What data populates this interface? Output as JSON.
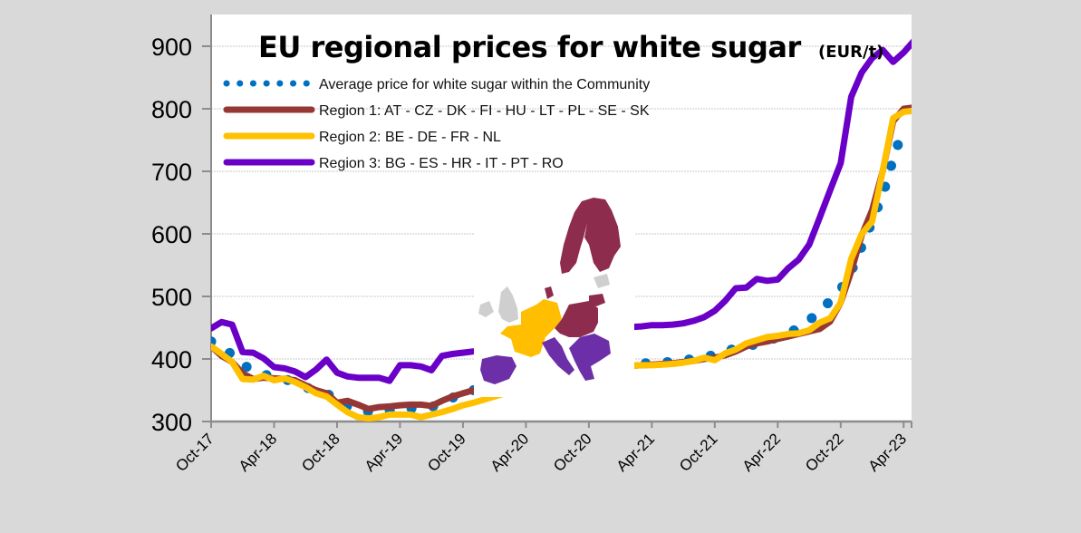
{
  "chart_data": {
    "type": "line",
    "title": "EU regional prices for white sugar",
    "unit": "(EUR/t)",
    "xlabel": "",
    "ylabel": "",
    "ylim": [
      300,
      900
    ],
    "yticks": [
      300,
      400,
      500,
      600,
      700,
      800,
      900
    ],
    "grid": true,
    "legend_position": "top-left",
    "x_start": "Oct-17",
    "x_tick_labels": [
      "Oct-17",
      "Apr-18",
      "Oct-18",
      "Apr-19",
      "Oct-19",
      "Apr-20",
      "Oct-20",
      "Apr-21",
      "Oct-21",
      "Apr-22",
      "Oct-22",
      "Apr-23"
    ],
    "x_tick_months": [
      0,
      6,
      12,
      18,
      24,
      30,
      36,
      42,
      48,
      54,
      60,
      66
    ],
    "annotation": "EU map inset showing Region 1 (dark red), Region 2 (yellow), Region 3 (purple)",
    "series": [
      {
        "name": "Average price for white sugar within the Community",
        "style": "dotted",
        "color": "#0070C0",
        "values": [
          428,
          418,
          407,
          392,
          380,
          375,
          372,
          368,
          362,
          355,
          349,
          344,
          338,
          324,
          318,
          316,
          316,
          318,
          320,
          321,
          322,
          323,
          330,
          338,
          345,
          350,
          355,
          358,
          360,
          362,
          365,
          370,
          375,
          378,
          380,
          382,
          385,
          388,
          390,
          392,
          393,
          393,
          393,
          394,
          396,
          398,
          400,
          404,
          406,
          412,
          417,
          420,
          424,
          430,
          434,
          442,
          449,
          462,
          476,
          493,
          511,
          540,
          580,
          620,
          662,
          720,
          770
        ]
      },
      {
        "name": "Region 1: AT - CZ - DK - FI - HU - LT - PL - SE - SK",
        "style": "solid",
        "color": "#953735",
        "values": [
          420,
          405,
          395,
          377,
          368,
          370,
          369,
          368,
          366,
          358,
          350,
          345,
          330,
          333,
          327,
          320,
          323,
          324,
          326,
          327,
          327,
          325,
          333,
          340,
          345,
          350,
          352,
          355,
          358,
          360,
          362,
          365,
          368,
          372,
          375,
          378,
          380,
          383,
          385,
          387,
          389,
          390,
          391,
          392,
          393,
          395,
          397,
          400,
          402,
          406,
          412,
          420,
          425,
          428,
          432,
          436,
          440,
          444,
          448,
          460,
          490,
          540,
          598,
          638,
          700,
          780,
          800,
          802,
          806,
          812
        ]
      },
      {
        "name": "Region 2: BE - DE - FR - NL",
        "style": "solid",
        "color": "#FFC000",
        "values": [
          420,
          408,
          395,
          368,
          367,
          373,
          366,
          369,
          363,
          355,
          345,
          340,
          327,
          315,
          307,
          305,
          307,
          311,
          311,
          311,
          307,
          311,
          315,
          320,
          326,
          330,
          335,
          340,
          345,
          350,
          355,
          360,
          365,
          370,
          374,
          378,
          381,
          384,
          386,
          388,
          389,
          390,
          390,
          391,
          392,
          394,
          397,
          402,
          398,
          409,
          415,
          425,
          430,
          435,
          437,
          440,
          441,
          446,
          458,
          465,
          490,
          560,
          600,
          620,
          700,
          785,
          795,
          797,
          800
        ]
      },
      {
        "name": "Region 3: BG - ES - HR - IT - PT - RO",
        "style": "solid",
        "color": "#6A00C8",
        "values": [
          449,
          459,
          455,
          411,
          410,
          401,
          387,
          385,
          380,
          371,
          383,
          399,
          378,
          372,
          370,
          370,
          370,
          365,
          390,
          390,
          388,
          382,
          405,
          408,
          410,
          412,
          414,
          416,
          418,
          420,
          422,
          425,
          428,
          432,
          436,
          440,
          443,
          446,
          448,
          450,
          451,
          452,
          454,
          454,
          455,
          457,
          461,
          467,
          477,
          493,
          513,
          514,
          528,
          525,
          527,
          545,
          559,
          583,
          626,
          670,
          713,
          819,
          858,
          881,
          894,
          875,
          890,
          909
        ]
      }
    ]
  }
}
